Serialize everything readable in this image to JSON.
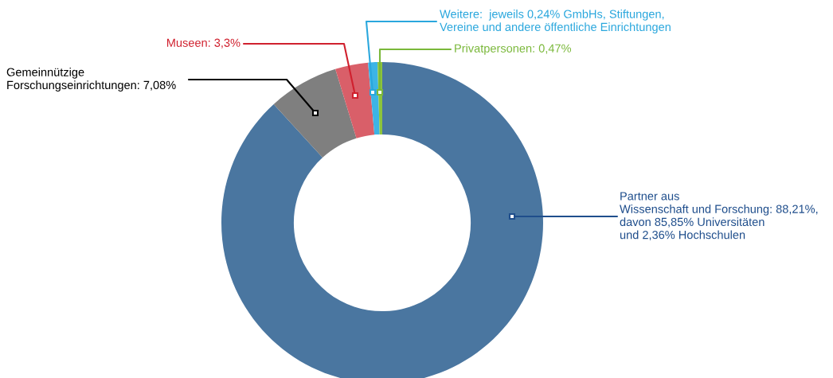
{
  "chart_data": {
    "type": "donut",
    "categories": [
      "Partner aus\nWissenschaft und Forschung: 88,21%,\ndavon 85,85% Universitäten\nund 2,36% Hochschulen",
      "Gemeinnützige\nForschungseinrichtungen: 7,08%",
      "Museen: 3,3%",
      "Weitere:  jeweils 0,24% GmbHs, Stiftungen,\nVereine und andere öffentliche Einrichtungen",
      "Privatpersonen: 0,47%"
    ],
    "values": [
      88.21,
      7.08,
      3.3,
      0.94,
      0.47
    ],
    "colors": [
      "#4a76a0",
      "#7f7f7f",
      "#d95f69",
      "#3cb4e6",
      "#8cc43c"
    ],
    "legend": false
  }
}
